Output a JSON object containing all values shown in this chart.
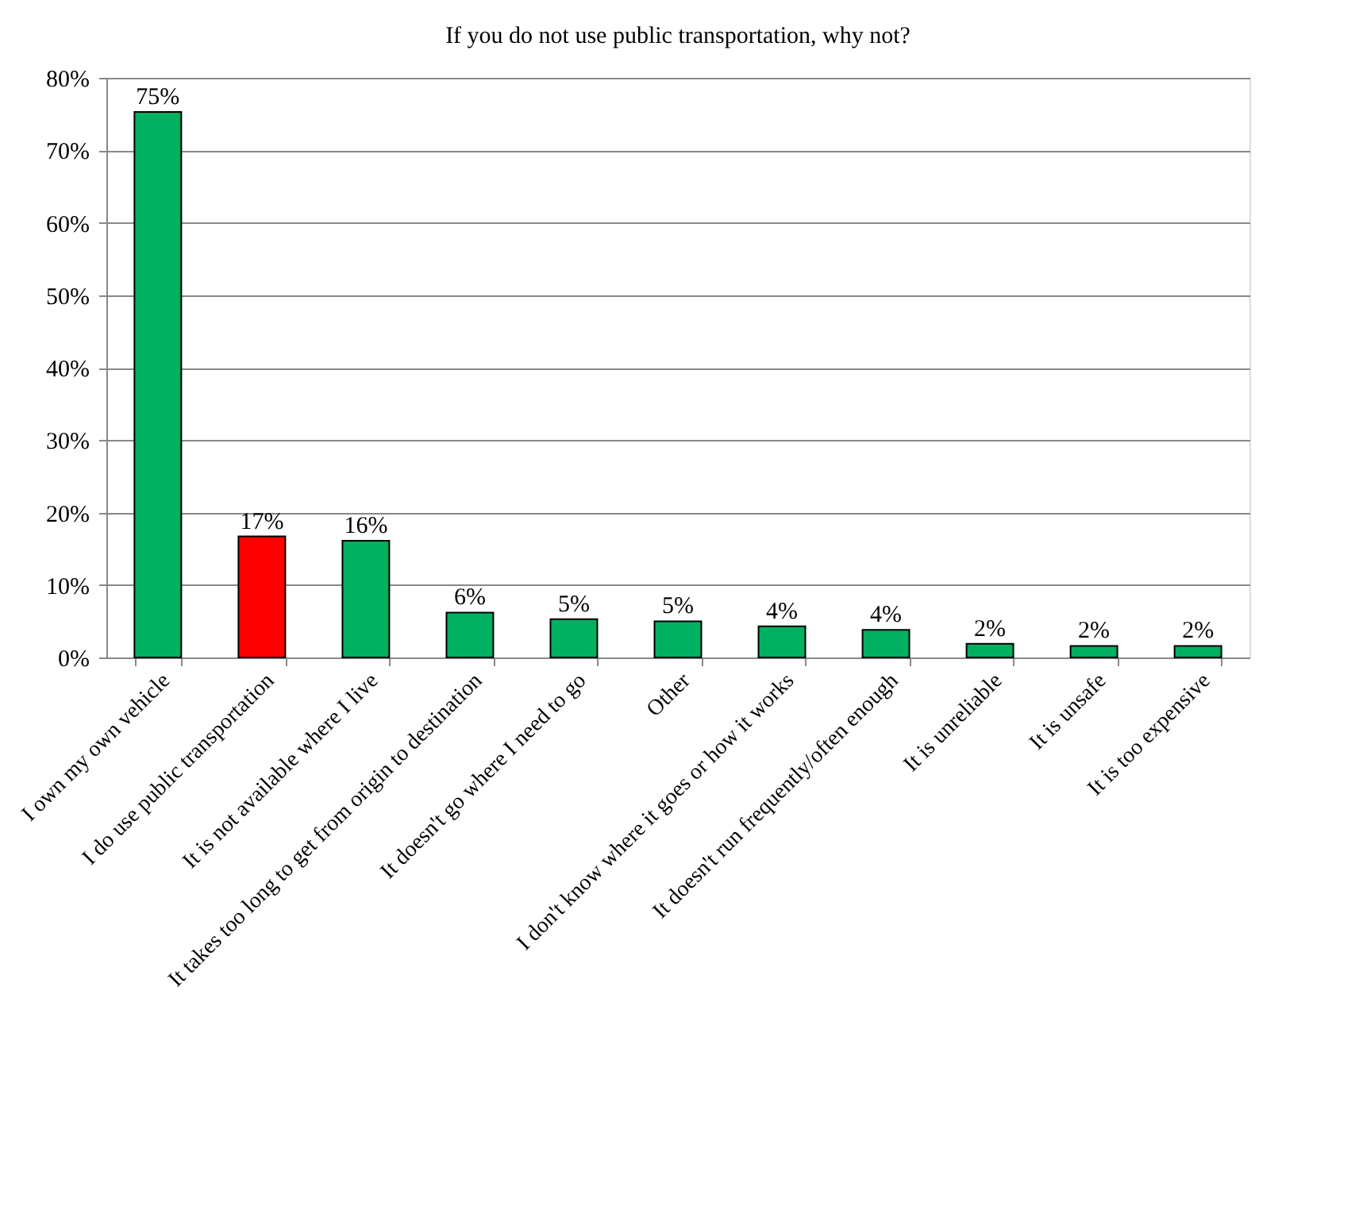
{
  "chart_data": {
    "type": "bar",
    "title": "If you do not use public transportation, why not?",
    "categories": [
      "I own my own vehicle",
      "I do use public transportation",
      "It is not available where I live",
      "It takes too long to get from origin to destination",
      "It doesn't go where I need to go",
      "Other",
      "I don't know where it goes or how it works",
      "It doesn't run frequently/often enough",
      "It is unreliable",
      "It is unsafe",
      "It is too expensive"
    ],
    "values": [
      75.3,
      16.7,
      16.1,
      6.2,
      5.3,
      5.0,
      4.3,
      3.8,
      1.9,
      1.6,
      1.6
    ],
    "value_labels": [
      "75%",
      "17%",
      "16%",
      "6%",
      "5%",
      "5%",
      "4%",
      "4%",
      "2%",
      "2%",
      "2%"
    ],
    "colors": [
      "#00b060",
      "#ff0000",
      "#00b060",
      "#00b060",
      "#00b060",
      "#00b060",
      "#00b060",
      "#00b060",
      "#00b060",
      "#00b060",
      "#00b060"
    ],
    "ylim": [
      0,
      80
    ],
    "yticks": [
      {
        "value": 0,
        "label": "0%"
      },
      {
        "value": 10,
        "label": "10%"
      },
      {
        "value": 20,
        "label": "20%"
      },
      {
        "value": 30,
        "label": "30%"
      },
      {
        "value": 40,
        "label": "40%"
      },
      {
        "value": 50,
        "label": "50%"
      },
      {
        "value": 60,
        "label": "60%"
      },
      {
        "value": 70,
        "label": "70%"
      },
      {
        "value": 80,
        "label": "80%"
      }
    ],
    "grid": "y"
  }
}
